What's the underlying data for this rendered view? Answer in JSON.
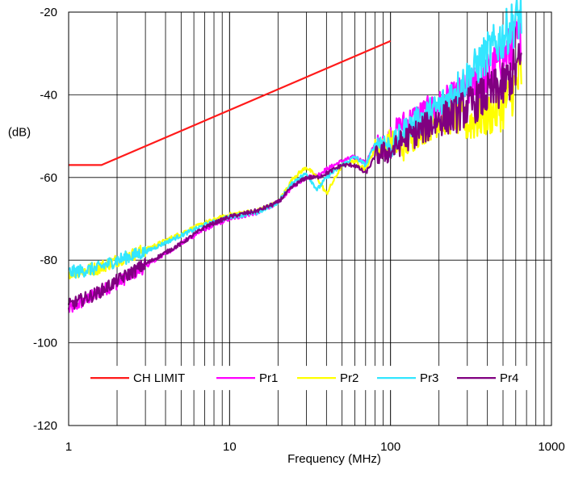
{
  "chart_data": {
    "type": "line",
    "xlabel": "Frequency (MHz)",
    "ylabel": "(dB)",
    "x_scale": "log",
    "xlim": [
      1,
      1000
    ],
    "ylim": [
      -120,
      -20
    ],
    "x_ticks": [
      1,
      10,
      100,
      1000
    ],
    "x_tick_labels": [
      "1",
      "10",
      "100",
      "1000"
    ],
    "y_ticks": [
      -120,
      -100,
      -80,
      -60,
      -40,
      -20
    ],
    "y_tick_labels": [
      "-120",
      "-100",
      "-80",
      "-60",
      "-40",
      "-20"
    ],
    "grid": true,
    "legend_position": "bottom-inside",
    "series": [
      {
        "name": "CH LIMIT",
        "color": "#ff1a1a",
        "x": [
          1,
          1.6,
          100
        ],
        "y": [
          -57,
          -57,
          -27
        ]
      },
      {
        "name": "Pr1",
        "color": "#ff00ff",
        "x": [
          1,
          1.5,
          2,
          3,
          5,
          7,
          10,
          15,
          20,
          25,
          30,
          35,
          40,
          50,
          60,
          70,
          80,
          90,
          100,
          120,
          150,
          200,
          250,
          300,
          400,
          500,
          600,
          650
        ],
        "y": [
          -92,
          -88,
          -85.5,
          -81.5,
          -76,
          -72.5,
          -70,
          -68.5,
          -66,
          -62,
          -60,
          -59.5,
          -58,
          -56,
          -55,
          -56.5,
          -52,
          -52.5,
          -50,
          -47,
          -45,
          -43,
          -41,
          -39,
          -35,
          -31,
          -27,
          -26
        ]
      },
      {
        "name": "Pr2",
        "color": "#ffff00",
        "x": [
          1,
          1.5,
          2,
          3,
          5,
          7,
          10,
          15,
          20,
          25,
          30,
          35,
          40,
          50,
          60,
          70,
          80,
          90,
          100,
          120,
          150,
          200,
          250,
          300,
          400,
          500,
          600,
          650
        ],
        "y": [
          -83,
          -82,
          -80,
          -77.5,
          -73.5,
          -71,
          -69,
          -68,
          -66,
          -60,
          -57.5,
          -60,
          -64,
          -57,
          -56,
          -58,
          -53,
          -53,
          -51,
          -53,
          -49,
          -46,
          -45,
          -47,
          -45,
          -43,
          -38,
          -35
        ]
      },
      {
        "name": "Pr3",
        "color": "#33e6ff",
        "x": [
          1,
          1.5,
          2,
          3,
          5,
          7,
          10,
          15,
          20,
          25,
          30,
          35,
          40,
          50,
          60,
          70,
          80,
          90,
          100,
          120,
          150,
          200,
          250,
          300,
          400,
          500,
          600,
          650
        ],
        "y": [
          -83,
          -82,
          -80,
          -78,
          -74,
          -71.5,
          -69.5,
          -68.5,
          -66,
          -61,
          -59,
          -63,
          -60,
          -57,
          -55,
          -57,
          -52,
          -51,
          -53,
          -49,
          -46,
          -43,
          -39,
          -36,
          -30,
          -26,
          -22,
          -21
        ]
      },
      {
        "name": "Pr4",
        "color": "#800080",
        "x": [
          1,
          1.5,
          2,
          3,
          5,
          7,
          10,
          15,
          20,
          25,
          30,
          35,
          40,
          50,
          60,
          70,
          80,
          90,
          100,
          120,
          150,
          200,
          250,
          300,
          400,
          500,
          600,
          650
        ],
        "y": [
          -91,
          -88,
          -85,
          -81,
          -76,
          -72,
          -69.5,
          -68,
          -66,
          -62,
          -60,
          -60,
          -59,
          -57,
          -57,
          -59,
          -55,
          -54,
          -54,
          -51,
          -49,
          -46,
          -45,
          -43,
          -40,
          -38,
          -34,
          -32
        ]
      }
    ]
  }
}
